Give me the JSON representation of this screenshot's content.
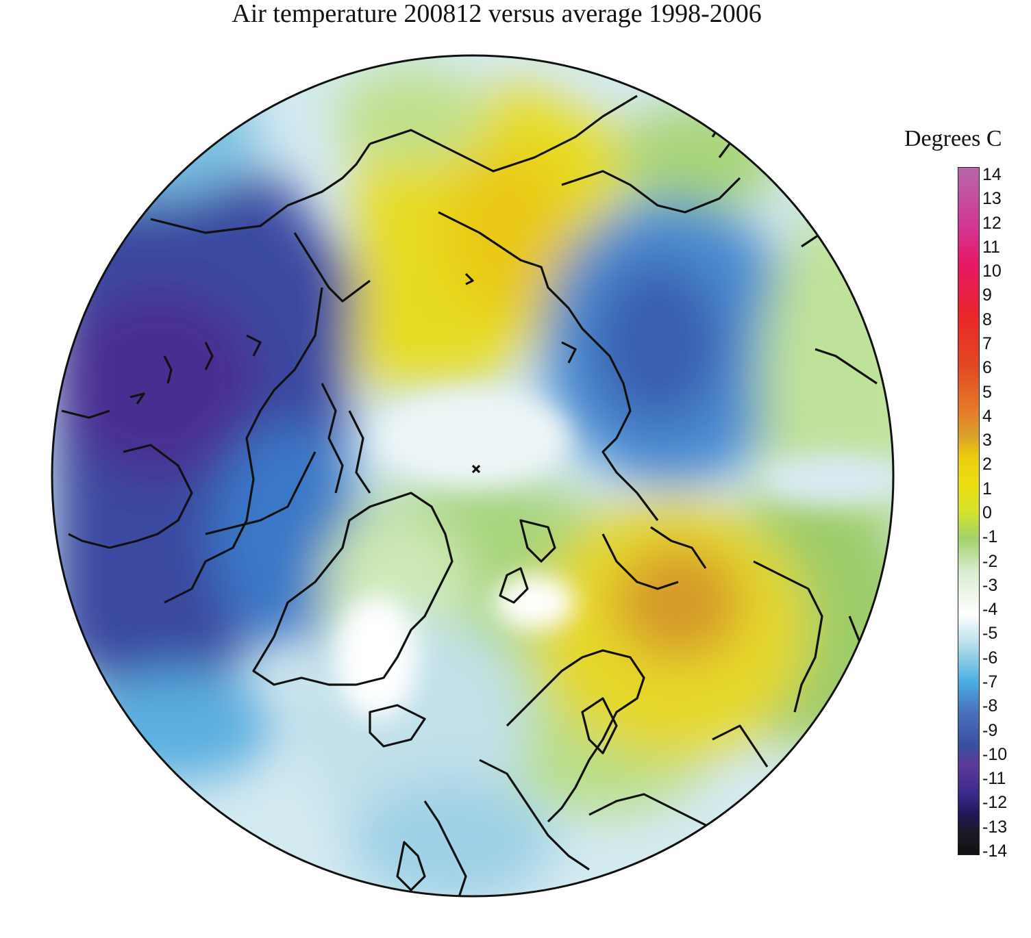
{
  "title": "Air temperature 200812 versus average 1998-2006",
  "legend": {
    "title": "Degrees C",
    "ticks": [
      "14",
      "13",
      "12",
      "11",
      "10",
      "9",
      "8",
      "7",
      "6",
      "5",
      "4",
      "3",
      "2",
      "1",
      "0",
      "-1",
      "-2",
      "-3",
      "-4",
      "-5",
      "-6",
      "-7",
      "-8",
      "-9",
      "-10",
      "-11",
      "-12",
      "-13",
      "-14"
    ],
    "min": -14,
    "max": 14
  },
  "colors": {
    "cold": "#3a50a0",
    "neutral": "#ffffff",
    "warm": "#ebcc10",
    "hot": "#d9a02a"
  }
}
